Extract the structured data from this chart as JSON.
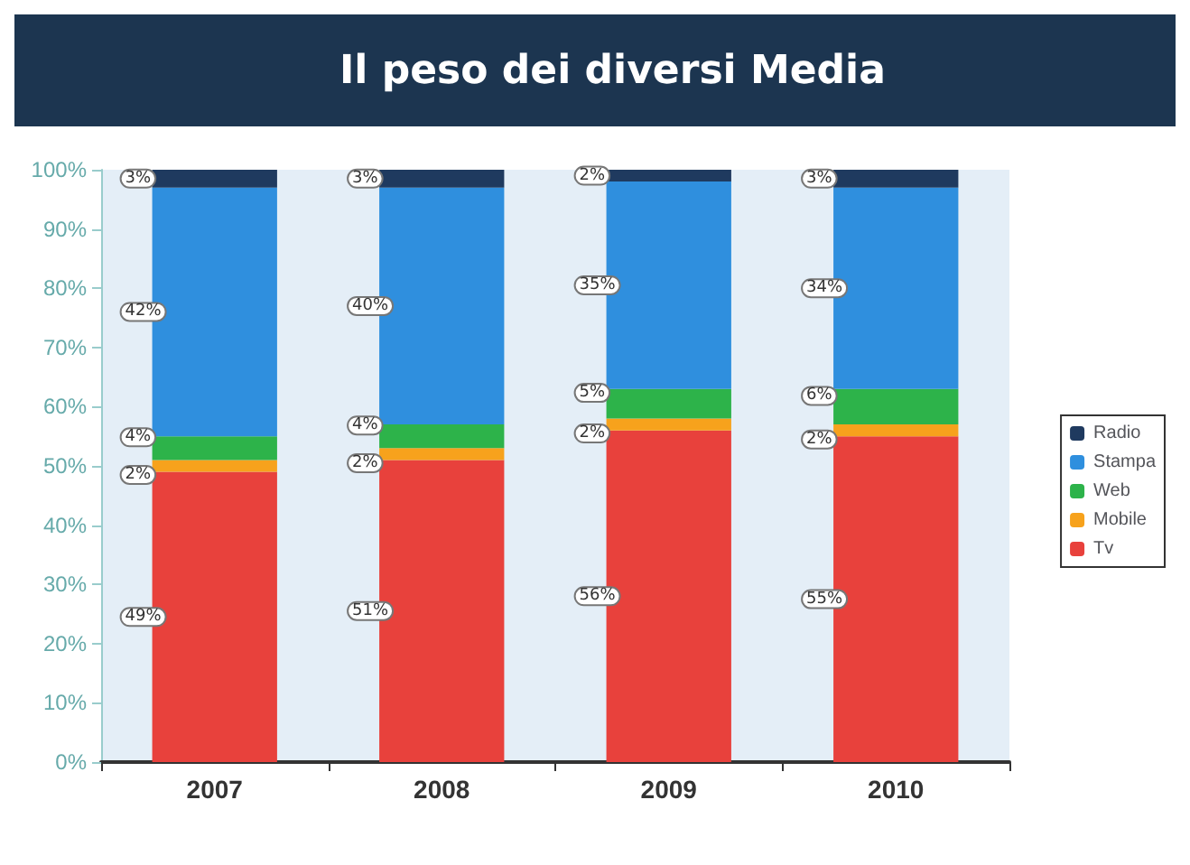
{
  "chart_data": {
    "type": "bar",
    "title": "Il peso dei diversi Media",
    "stacked": true,
    "categories": [
      "2007",
      "2008",
      "2009",
      "2010"
    ],
    "series": [
      {
        "name": "Tv",
        "color": "#e8413c",
        "values": [
          49,
          51,
          56,
          55
        ],
        "value_labels": [
          "49%",
          "51%",
          "56%",
          "55%"
        ]
      },
      {
        "name": "Mobile",
        "color": "#f7a21c",
        "values": [
          2,
          2,
          2,
          2
        ],
        "value_labels": [
          "2%",
          "2%",
          "2%",
          "2%"
        ]
      },
      {
        "name": "Web",
        "color": "#2db34a",
        "values": [
          4,
          4,
          5,
          6
        ],
        "value_labels": [
          "4%",
          "4%",
          "5%",
          "6%"
        ]
      },
      {
        "name": "Stampa",
        "color": "#2f8fde",
        "values": [
          42,
          40,
          35,
          34
        ],
        "value_labels": [
          "42%",
          "40%",
          "35%",
          "34%"
        ]
      },
      {
        "name": "Radio",
        "color": "#1f3a5f",
        "values": [
          3,
          3,
          2,
          3
        ],
        "value_labels": [
          "3%",
          "3%",
          "2%",
          "3%"
        ]
      }
    ],
    "ylim": [
      0,
      100
    ],
    "yticks": [
      {
        "value": 0,
        "label": "0%"
      },
      {
        "value": 10,
        "label": "10%"
      },
      {
        "value": 20,
        "label": "20%"
      },
      {
        "value": 30,
        "label": "30%"
      },
      {
        "value": 40,
        "label": "40%"
      },
      {
        "value": 50,
        "label": "50%"
      },
      {
        "value": 60,
        "label": "60%"
      },
      {
        "value": 70,
        "label": "70%"
      },
      {
        "value": 80,
        "label": "80%"
      },
      {
        "value": 90,
        "label": "90%"
      },
      {
        "value": 100,
        "label": "100%"
      }
    ],
    "grid": false,
    "legend": "right"
  }
}
